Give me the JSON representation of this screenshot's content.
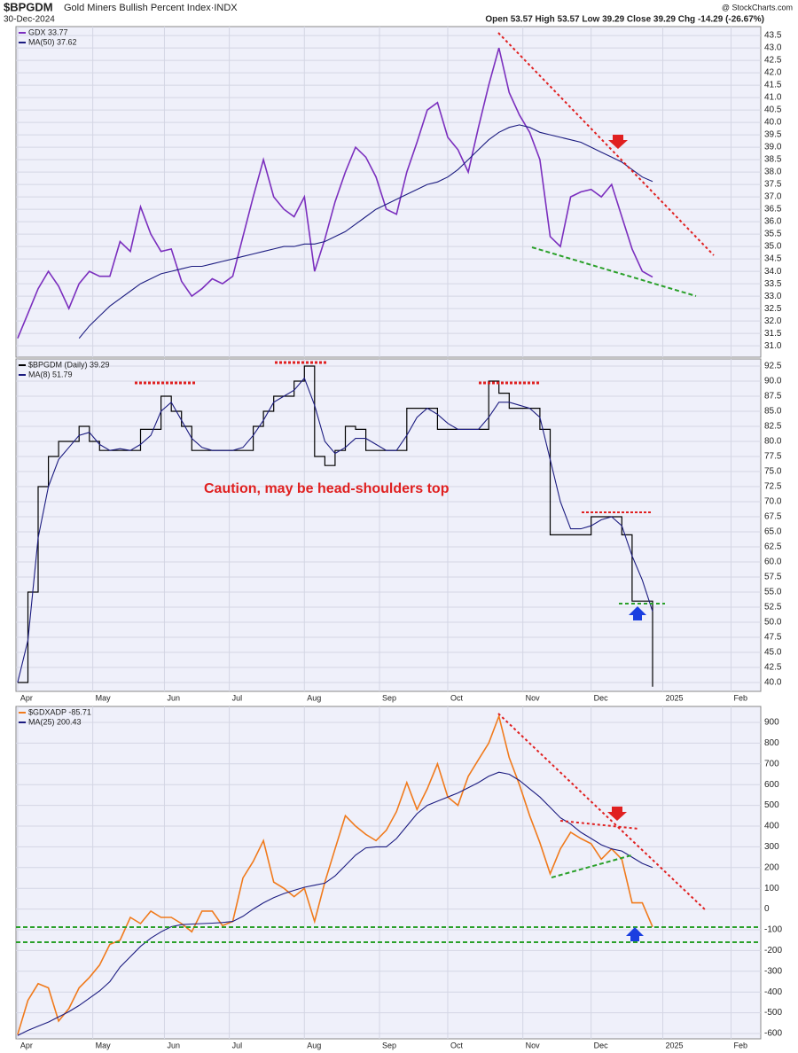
{
  "header": {
    "symbol": "$BPGDM",
    "name": "Gold Miners Bullish Percent Index·INDX",
    "date": "30-Dec-2024",
    "quote": "Open 53.57  High 53.57  Low 39.29  Close 39.29  Chg -14.29 (-26.67%)",
    "credit": "@ StockCharts.com"
  },
  "chart_data": [
    {
      "type": "line",
      "x": [
        0,
        3,
        6,
        9,
        12,
        15,
        18,
        21,
        24,
        27,
        30,
        33,
        36,
        39,
        42,
        45,
        48,
        51,
        54,
        57,
        60,
        63,
        66,
        69,
        72,
        75,
        78,
        81,
        84,
        87,
        90,
        93,
        96,
        99,
        102,
        105,
        108,
        111,
        114,
        117,
        120,
        123,
        126,
        129,
        132,
        135,
        138,
        141,
        144,
        147,
        150,
        153,
        156,
        159,
        162,
        165,
        168,
        171,
        174,
        177,
        180,
        183,
        186
      ],
      "series": [
        {
          "name": "GDX 33.77",
          "color": "#7b2fbe",
          "values": [
            31.3,
            32.3,
            33.3,
            34.0,
            33.4,
            32.5,
            33.5,
            34.0,
            33.8,
            33.8,
            35.2,
            34.8,
            36.6,
            35.5,
            34.8,
            34.9,
            33.6,
            33.0,
            33.3,
            33.7,
            33.5,
            33.8,
            35.4,
            37.0,
            38.5,
            37.0,
            36.5,
            36.2,
            37.0,
            34.0,
            35.3,
            36.8,
            38.0,
            39.0,
            38.6,
            37.8,
            36.5,
            36.3,
            38.0,
            39.2,
            40.5,
            40.8,
            39.4,
            38.9,
            38.0,
            39.8,
            41.5,
            43.0,
            41.2,
            40.3,
            39.6,
            38.5,
            35.4,
            35.0,
            37.0,
            37.2,
            37.3,
            37.0,
            37.5,
            36.2,
            34.9,
            34.0,
            33.77
          ]
        },
        {
          "name": "MA(50) 37.62",
          "color": "#1c1c80",
          "values": [
            null,
            null,
            null,
            null,
            null,
            null,
            31.3,
            31.8,
            32.2,
            32.6,
            32.9,
            33.2,
            33.5,
            33.7,
            33.9,
            34.0,
            34.1,
            34.2,
            34.2,
            34.3,
            34.4,
            34.5,
            34.6,
            34.7,
            34.8,
            34.9,
            35.0,
            35.0,
            35.1,
            35.1,
            35.2,
            35.4,
            35.6,
            35.9,
            36.2,
            36.5,
            36.7,
            36.9,
            37.1,
            37.3,
            37.5,
            37.6,
            37.8,
            38.1,
            38.5,
            38.9,
            39.3,
            39.6,
            39.8,
            39.9,
            39.8,
            39.6,
            39.5,
            39.4,
            39.3,
            39.2,
            39.0,
            38.8,
            38.6,
            38.4,
            38.1,
            37.8,
            37.62
          ]
        }
      ],
      "xlim": [
        -0.5,
        217.7
      ],
      "xticks": [
        0,
        22,
        43,
        62,
        84,
        106,
        126,
        148,
        168,
        189,
        209
      ],
      "ylim": [
        30.54,
        43.86
      ],
      "yticks": [
        {
          "value": 31,
          "label": "31.0"
        },
        31.5,
        {
          "value": 32,
          "label": "32.0"
        },
        32.5,
        {
          "value": 33,
          "label": "33.0"
        },
        33.5,
        {
          "value": 34,
          "label": "34.0"
        },
        34.5,
        {
          "value": 35,
          "label": "35.0"
        },
        35.5,
        {
          "value": 36,
          "label": "36.0"
        },
        36.5,
        {
          "value": 37,
          "label": "37.0"
        },
        37.5,
        {
          "value": 38,
          "label": "38.0"
        },
        38.5,
        {
          "value": 39,
          "label": "39.0"
        },
        39.5,
        {
          "value": 40,
          "label": "40.0"
        },
        40.5,
        {
          "value": 41,
          "label": "41.0"
        },
        41.5,
        {
          "value": 42,
          "label": "42.0"
        },
        42.5,
        {
          "value": 43,
          "label": "43.0"
        },
        43.5
      ],
      "grid": true
    },
    {
      "type": "step",
      "annotation": "Caution, may be head-shoulders top",
      "x": [
        0,
        3,
        6,
        9,
        12,
        15,
        18,
        21,
        24,
        27,
        30,
        33,
        36,
        39,
        42,
        45,
        48,
        51,
        54,
        57,
        60,
        63,
        66,
        69,
        72,
        75,
        78,
        81,
        84,
        87,
        90,
        93,
        96,
        99,
        102,
        105,
        108,
        111,
        114,
        117,
        120,
        123,
        126,
        129,
        132,
        135,
        138,
        141,
        144,
        147,
        150,
        153,
        156,
        159,
        162,
        165,
        168,
        171,
        174,
        177,
        180,
        183,
        186
      ],
      "series": [
        {
          "name": "$BPGDM (Daily) 39.29",
          "color": "#000000",
          "values": [
            40.0,
            55.0,
            72.5,
            77.5,
            80.0,
            80.0,
            82.5,
            80.0,
            78.5,
            78.5,
            78.5,
            78.5,
            82.0,
            82.0,
            87.5,
            85.0,
            82.5,
            78.5,
            78.5,
            78.5,
            78.5,
            78.5,
            78.5,
            82.5,
            85.0,
            87.5,
            87.5,
            90.0,
            92.5,
            77.5,
            76.0,
            78.5,
            82.5,
            82.0,
            78.5,
            78.5,
            78.5,
            78.5,
            85.5,
            85.5,
            85.5,
            82.0,
            82.0,
            82.0,
            82.0,
            82.0,
            90.0,
            88.0,
            85.5,
            85.5,
            85.5,
            82.0,
            64.5,
            64.5,
            64.5,
            64.5,
            67.5,
            67.5,
            67.5,
            64.5,
            53.5,
            53.5,
            39.29
          ]
        },
        {
          "name": "MA(8) 51.79",
          "color": "#1c1c80",
          "values": [
            40.0,
            47.0,
            64.0,
            72.5,
            77.0,
            79.0,
            81.0,
            81.5,
            79.5,
            78.5,
            78.8,
            78.5,
            79.5,
            81.0,
            85.0,
            86.5,
            83.5,
            80.5,
            79.0,
            78.5,
            78.5,
            78.5,
            79.0,
            81.0,
            83.5,
            86.5,
            87.5,
            88.5,
            90.5,
            86.0,
            80.0,
            78.0,
            79.0,
            80.5,
            80.5,
            79.5,
            78.5,
            78.5,
            81.0,
            84.0,
            85.5,
            84.5,
            83.0,
            82.0,
            82.0,
            82.0,
            84.0,
            86.5,
            86.5,
            86.0,
            85.5,
            84.0,
            77.0,
            70.0,
            65.5,
            65.5,
            66.0,
            67.0,
            67.5,
            66.0,
            61.0,
            57.0,
            51.79
          ]
        }
      ],
      "xlim": [
        -0.5,
        217.7
      ],
      "xticks": [
        {
          "value": 0,
          "label": "Apr"
        },
        {
          "value": 22,
          "label": "May"
        },
        {
          "value": 43,
          "label": "Jun"
        },
        {
          "value": 62,
          "label": "Jul"
        },
        {
          "value": 84,
          "label": "Aug"
        },
        {
          "value": 106,
          "label": "Sep"
        },
        {
          "value": 126,
          "label": "Oct"
        },
        {
          "value": 148,
          "label": "Nov"
        },
        {
          "value": 168,
          "label": "Dec"
        },
        {
          "value": 189,
          "label": "2025"
        },
        {
          "value": 209,
          "label": "Feb"
        }
      ],
      "ylim": [
        38.53,
        93.68
      ],
      "yticks": [
        {
          "value": 40,
          "label": "40.0"
        },
        42.5,
        {
          "value": 45,
          "label": "45.0"
        },
        47.5,
        {
          "value": 50,
          "label": "50.0"
        },
        52.5,
        {
          "value": 55,
          "label": "55.0"
        },
        57.5,
        {
          "value": 60,
          "label": "60.0"
        },
        62.5,
        {
          "value": 65,
          "label": "65.0"
        },
        67.5,
        {
          "value": 70,
          "label": "70.0"
        },
        72.5,
        {
          "value": 75,
          "label": "75.0"
        },
        77.5,
        {
          "value": 80,
          "label": "80.0"
        },
        82.5,
        {
          "value": 85,
          "label": "85.0"
        },
        87.5,
        {
          "value": 90,
          "label": "90.0"
        },
        92.5
      ],
      "grid": true
    },
    {
      "type": "line",
      "x": [
        0,
        3,
        6,
        9,
        12,
        15,
        18,
        21,
        24,
        27,
        30,
        33,
        36,
        39,
        42,
        45,
        48,
        51,
        54,
        57,
        60,
        63,
        66,
        69,
        72,
        75,
        78,
        81,
        84,
        87,
        90,
        93,
        96,
        99,
        102,
        105,
        108,
        111,
        114,
        117,
        120,
        123,
        126,
        129,
        132,
        135,
        138,
        141,
        144,
        147,
        150,
        153,
        156,
        159,
        162,
        165,
        168,
        171,
        174,
        177,
        180,
        183,
        186
      ],
      "series": [
        {
          "name": "$GDXADP -85.71",
          "color": "#f07a1c",
          "values": [
            -605,
            -440,
            -360,
            -380,
            -540,
            -480,
            -380,
            -330,
            -270,
            -170,
            -150,
            -40,
            -70,
            -10,
            -40,
            -40,
            -70,
            -110,
            -10,
            -10,
            -80,
            -60,
            150,
            230,
            330,
            130,
            100,
            60,
            100,
            -60,
            130,
            290,
            450,
            400,
            360,
            330,
            380,
            470,
            610,
            480,
            580,
            700,
            540,
            500,
            640,
            720,
            800,
            930,
            730,
            600,
            450,
            320,
            170,
            290,
            370,
            340,
            315,
            240,
            290,
            240,
            30,
            30,
            -85.71
          ]
        },
        {
          "name": "MA(25) 200.43",
          "color": "#1c1c80",
          "values": [
            -610,
            -585,
            -565,
            -545,
            -520,
            -495,
            -465,
            -430,
            -395,
            -350,
            -280,
            -230,
            -180,
            -140,
            -110,
            -85,
            -75,
            -72,
            -70,
            -68,
            -65,
            -60,
            -35,
            0,
            30,
            55,
            75,
            90,
            105,
            115,
            125,
            160,
            210,
            260,
            295,
            300,
            300,
            340,
            400,
            460,
            500,
            520,
            540,
            560,
            585,
            610,
            640,
            660,
            650,
            620,
            580,
            540,
            490,
            440,
            410,
            370,
            340,
            310,
            290,
            280,
            250,
            220,
            200.43
          ]
        }
      ],
      "xlim": [
        -0.5,
        217.7
      ],
      "xticks": [
        {
          "value": 0,
          "label": "Apr"
        },
        {
          "value": 22,
          "label": "May"
        },
        {
          "value": 43,
          "label": "Jun"
        },
        {
          "value": 62,
          "label": "Jul"
        },
        {
          "value": 84,
          "label": "Aug"
        },
        {
          "value": 106,
          "label": "Sep"
        },
        {
          "value": 126,
          "label": "Oct"
        },
        {
          "value": 148,
          "label": "Nov"
        },
        {
          "value": 168,
          "label": "Dec"
        },
        {
          "value": 189,
          "label": "2025"
        },
        {
          "value": 209,
          "label": "Feb"
        }
      ],
      "ylim": [
        -625.6,
        976.9
      ],
      "yticks": [
        -600,
        -500,
        -400,
        -300,
        -200,
        -100,
        0,
        100,
        200,
        300,
        400,
        500,
        600,
        700,
        800,
        900
      ],
      "grid": true
    }
  ]
}
